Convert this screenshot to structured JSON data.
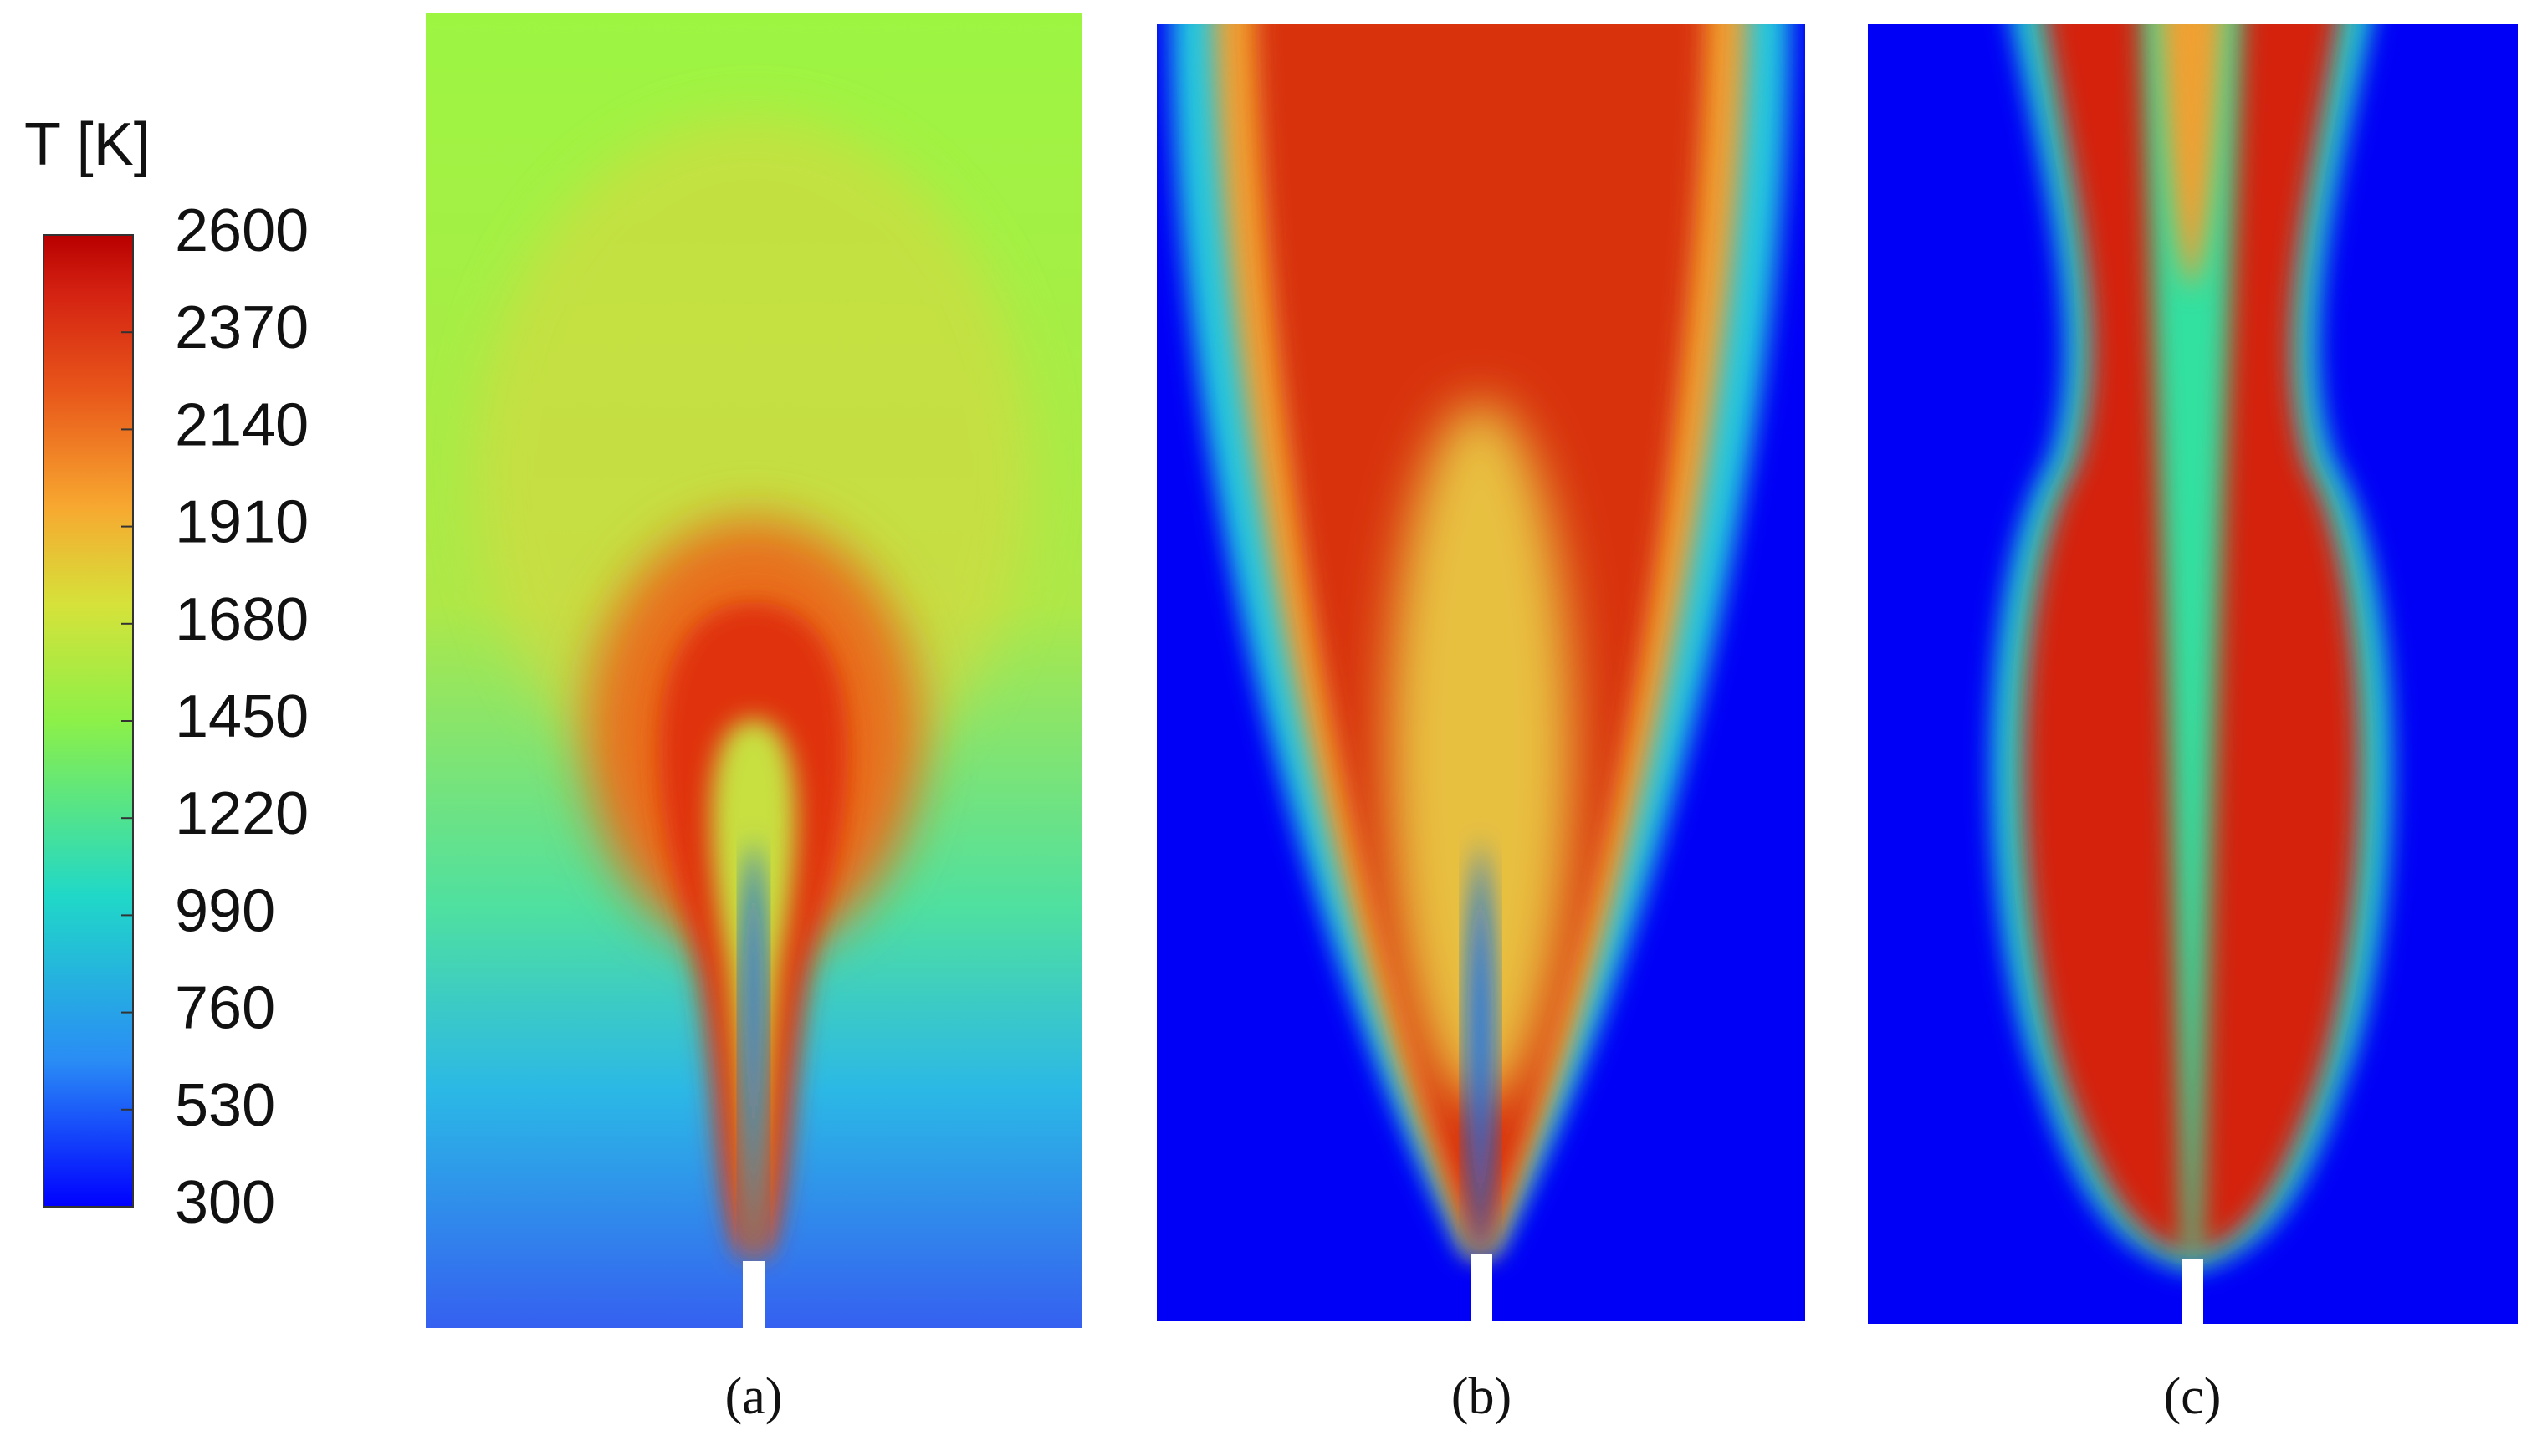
{
  "colorbar": {
    "title": "T [K]",
    "range": [
      300,
      2600
    ],
    "ticks": [
      2600,
      2370,
      2140,
      1910,
      1680,
      1450,
      1220,
      990,
      760,
      530,
      300
    ]
  },
  "panels": [
    {
      "label": "(a)"
    },
    {
      "label": "(b)"
    },
    {
      "label": "(c)"
    }
  ]
}
